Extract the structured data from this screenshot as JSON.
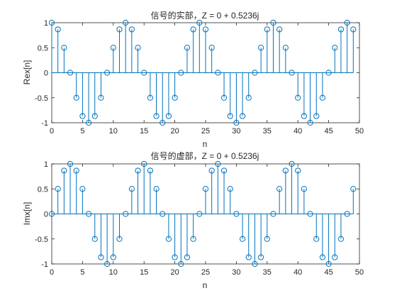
{
  "figure": {
    "background": "#ffffff",
    "axes_color": "#262626",
    "stem_color": "#0072bd"
  },
  "chart_data": [
    {
      "type": "stem",
      "title": "信号的实部，Z = 0 + 0.5236j",
      "xlabel": "n",
      "ylabel": "Rex[n]",
      "xlim": [
        0,
        50
      ],
      "ylim": [
        -1,
        1
      ],
      "xticks": [
        0,
        5,
        10,
        15,
        20,
        25,
        30,
        35,
        40,
        45,
        50
      ],
      "xtick_labels": [
        "0",
        "5",
        "10",
        "15",
        "20",
        "25",
        "30",
        "35",
        "40",
        "45",
        "50"
      ],
      "yticks": [
        1,
        0.5,
        0,
        -0.5,
        -1
      ],
      "ytick_labels": [
        "1",
        "0.5",
        "0",
        "-0.5",
        "-1"
      ],
      "grid": false,
      "x": [
        0,
        1,
        2,
        3,
        4,
        5,
        6,
        7,
        8,
        9,
        10,
        11,
        12,
        13,
        14,
        15,
        16,
        17,
        18,
        19,
        20,
        21,
        22,
        23,
        24,
        25,
        26,
        27,
        28,
        29,
        30,
        31,
        32,
        33,
        34,
        35,
        36,
        37,
        38,
        39,
        40,
        41,
        42,
        43,
        44,
        45,
        46,
        47,
        48,
        49
      ],
      "values": [
        1,
        0.866,
        0.5,
        0,
        -0.5,
        -0.866,
        -1,
        -0.866,
        -0.5,
        0,
        0.5,
        0.866,
        1,
        0.866,
        0.5,
        0,
        -0.5,
        -0.866,
        -1,
        -0.866,
        -0.5,
        0,
        0.5,
        0.866,
        1,
        0.866,
        0.5,
        0,
        -0.5,
        -0.866,
        -1,
        -0.866,
        -0.5,
        0,
        0.5,
        0.866,
        1,
        0.866,
        0.5,
        0,
        -0.5,
        -0.866,
        -1,
        -0.866,
        -0.5,
        0,
        0.5,
        0.866,
        1,
        0.866
      ]
    },
    {
      "type": "stem",
      "title": "信号的虚部，Z = 0 + 0.5236j",
      "xlabel": "n",
      "ylabel": "Imx[n]",
      "xlim": [
        0,
        50
      ],
      "ylim": [
        -1,
        1
      ],
      "xticks": [
        0,
        5,
        10,
        15,
        20,
        25,
        30,
        35,
        40,
        45,
        50
      ],
      "xtick_labels": [
        "0",
        "5",
        "10",
        "15",
        "20",
        "25",
        "30",
        "35",
        "40",
        "45",
        "50"
      ],
      "yticks": [
        1,
        0.5,
        0,
        -0.5,
        -1
      ],
      "ytick_labels": [
        "1",
        "0.5",
        "0",
        "-0.5",
        "-1"
      ],
      "grid": false,
      "x": [
        0,
        1,
        2,
        3,
        4,
        5,
        6,
        7,
        8,
        9,
        10,
        11,
        12,
        13,
        14,
        15,
        16,
        17,
        18,
        19,
        20,
        21,
        22,
        23,
        24,
        25,
        26,
        27,
        28,
        29,
        30,
        31,
        32,
        33,
        34,
        35,
        36,
        37,
        38,
        39,
        40,
        41,
        42,
        43,
        44,
        45,
        46,
        47,
        48,
        49
      ],
      "values": [
        0,
        0.5,
        0.866,
        1,
        0.866,
        0.5,
        0,
        -0.5,
        -0.866,
        -1,
        -0.866,
        -0.5,
        0,
        0.5,
        0.866,
        1,
        0.866,
        0.5,
        0,
        -0.5,
        -0.866,
        -1,
        -0.866,
        -0.5,
        0,
        0.5,
        0.866,
        1,
        0.866,
        0.5,
        0,
        -0.5,
        -0.866,
        -1,
        -0.866,
        -0.5,
        0,
        0.5,
        0.866,
        1,
        0.866,
        0.5,
        0,
        -0.5,
        -0.866,
        -1,
        -0.866,
        -0.5,
        0,
        0.5
      ]
    }
  ]
}
